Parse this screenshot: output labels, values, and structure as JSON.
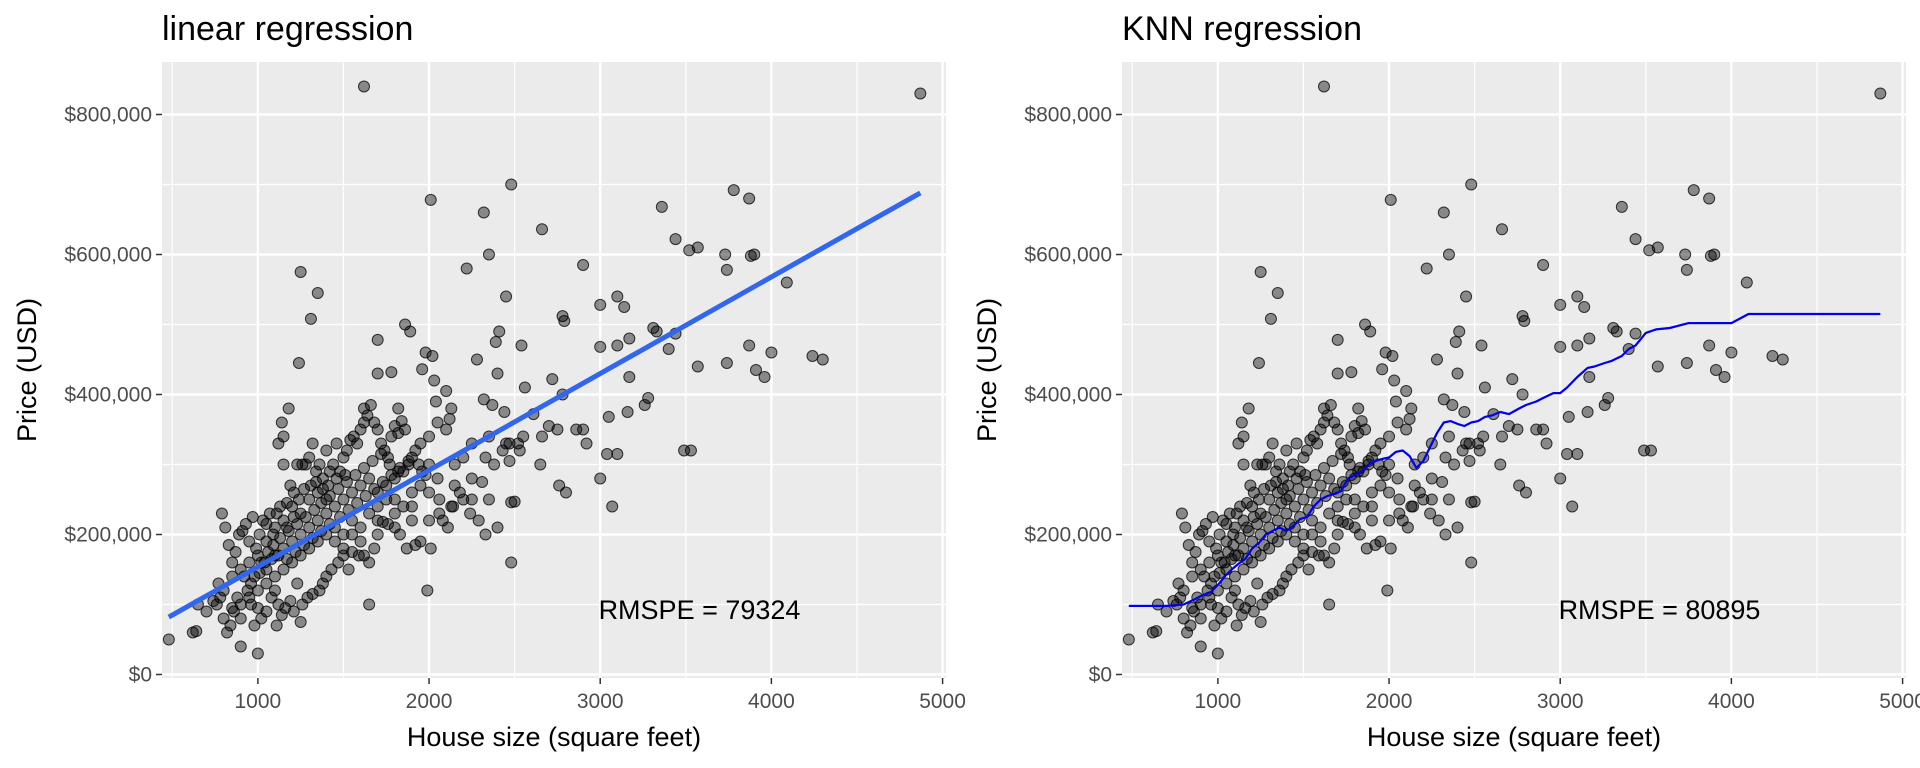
{
  "chart_data": [
    {
      "type": "scatter",
      "title": "linear regression",
      "xlabel": "House size (square feet)",
      "ylabel": "Price (USD)",
      "xlim": [
        440,
        5020
      ],
      "ylim": [
        -5000,
        875000
      ],
      "x_ticks": [
        1000,
        2000,
        3000,
        4000,
        5000
      ],
      "x_tick_labels": [
        "1000",
        "2000",
        "3000",
        "4000",
        "5000"
      ],
      "y_ticks": [
        0,
        200000,
        400000,
        600000,
        800000
      ],
      "y_tick_labels": [
        "$0",
        "$200,000",
        "$400,000",
        "$600,000",
        "$800,000"
      ],
      "grid": true,
      "points_color": "#000000",
      "fit_color": "#3366ee",
      "fit_style": "thick",
      "fit": {
        "x": [
          480,
          4870
        ],
        "y": [
          82000,
          688000
        ]
      },
      "annotation": {
        "text": "RMSPE = 79324",
        "x": 3580,
        "y": 92000
      }
    },
    {
      "type": "scatter",
      "title": "KNN regression",
      "xlabel": "House size (square feet)",
      "ylabel": "Price (USD)",
      "xlim": [
        440,
        5020
      ],
      "ylim": [
        -5000,
        875000
      ],
      "x_ticks": [
        1000,
        2000,
        3000,
        4000,
        5000
      ],
      "x_tick_labels": [
        "1000",
        "2000",
        "3000",
        "4000",
        "5000"
      ],
      "y_ticks": [
        0,
        200000,
        400000,
        600000,
        800000
      ],
      "y_tick_labels": [
        "$0",
        "$200,000",
        "$400,000",
        "$600,000",
        "$800,000"
      ],
      "grid": true,
      "points_color": "#000000",
      "fit_color": "#0000ee",
      "fit_style": "thin",
      "fit": {
        "x": [
          480,
          700,
          800,
          870,
          900,
          960,
          1000,
          1040,
          1080,
          1120,
          1160,
          1200,
          1240,
          1280,
          1320,
          1360,
          1400,
          1440,
          1480,
          1520,
          1560,
          1600,
          1640,
          1680,
          1720,
          1760,
          1800,
          1840,
          1880,
          1920,
          1960,
          2000,
          2040,
          2080,
          2120,
          2160,
          2200,
          2240,
          2280,
          2320,
          2360,
          2400,
          2440,
          2480,
          2520,
          2560,
          2600,
          2650,
          2700,
          2760,
          2800,
          2860,
          2900,
          2960,
          3000,
          3040,
          3100,
          3160,
          3200,
          3260,
          3300,
          3360,
          3400,
          3440,
          3500,
          3560,
          3640,
          3750,
          4000,
          4100,
          4870
        ],
        "y": [
          98000,
          98000,
          100000,
          108000,
          112000,
          118000,
          128000,
          140000,
          150000,
          158000,
          165000,
          180000,
          188000,
          200000,
          205000,
          210000,
          205000,
          212000,
          222000,
          225000,
          240000,
          250000,
          255000,
          258000,
          262000,
          280000,
          285000,
          290000,
          300000,
          305000,
          308000,
          310000,
          318000,
          320000,
          312000,
          295000,
          305000,
          325000,
          345000,
          360000,
          362000,
          358000,
          355000,
          360000,
          362000,
          368000,
          370000,
          375000,
          372000,
          380000,
          385000,
          390000,
          395000,
          402000,
          402000,
          410000,
          425000,
          438000,
          440000,
          445000,
          448000,
          455000,
          465000,
          470000,
          488000,
          493000,
          495000,
          502000,
          502000,
          515000,
          515000
        ]
      },
      "annotation": {
        "text": "RMSPE = 80895",
        "x": 3580,
        "y": 92000
      }
    }
  ],
  "scatter_points": [
    [
      1620,
      840000
    ],
    [
      4870,
      830000
    ],
    [
      2480,
      700000
    ],
    [
      2010,
      678000
    ],
    [
      3780,
      692000
    ],
    [
      3870,
      680000
    ],
    [
      3360,
      668000
    ],
    [
      2320,
      660000
    ],
    [
      2660,
      636000
    ],
    [
      3440,
      622000
    ],
    [
      3520,
      606000
    ],
    [
      3570,
      610000
    ],
    [
      3730,
      600000
    ],
    [
      3880,
      598000
    ],
    [
      3900,
      600000
    ],
    [
      2350,
      600000
    ],
    [
      2900,
      585000
    ],
    [
      2220,
      580000
    ],
    [
      3740,
      578000
    ],
    [
      1250,
      575000
    ],
    [
      4090,
      560000
    ],
    [
      1350,
      545000
    ],
    [
      2450,
      540000
    ],
    [
      3100,
      540000
    ],
    [
      3000,
      528000
    ],
    [
      3140,
      525000
    ],
    [
      1310,
      508000
    ],
    [
      2780,
      512000
    ],
    [
      2790,
      505000
    ],
    [
      1860,
      500000
    ],
    [
      3310,
      495000
    ],
    [
      3330,
      490000
    ],
    [
      3440,
      487000
    ],
    [
      1890,
      490000
    ],
    [
      2410,
      490000
    ],
    [
      3170,
      480000
    ],
    [
      1700,
      478000
    ],
    [
      2390,
      475000
    ],
    [
      2540,
      470000
    ],
    [
      3100,
      470000
    ],
    [
      3000,
      468000
    ],
    [
      3870,
      470000
    ],
    [
      4000,
      460000
    ],
    [
      1980,
      460000
    ],
    [
      2020,
      455000
    ],
    [
      2280,
      450000
    ],
    [
      3570,
      440000
    ],
    [
      3740,
      445000
    ],
    [
      4240,
      455000
    ],
    [
      4300,
      450000
    ],
    [
      3400,
      465000
    ],
    [
      1240,
      445000
    ],
    [
      1700,
      430000
    ],
    [
      1780,
      432000
    ],
    [
      1960,
      436000
    ],
    [
      2400,
      430000
    ],
    [
      2560,
      410000
    ],
    [
      2720,
      422000
    ],
    [
      3170,
      425000
    ],
    [
      3960,
      425000
    ],
    [
      2030,
      420000
    ],
    [
      2100,
      405000
    ],
    [
      3910,
      435000
    ],
    [
      2320,
      393000
    ],
    [
      2040,
      390000
    ],
    [
      2780,
      400000
    ],
    [
      2370,
      385000
    ],
    [
      1820,
      380000
    ],
    [
      1620,
      380000
    ],
    [
      2440,
      375000
    ],
    [
      2610,
      372000
    ],
    [
      3050,
      368000
    ],
    [
      2050,
      360000
    ],
    [
      2120,
      365000
    ],
    [
      3160,
      375000
    ],
    [
      2860,
      350000
    ],
    [
      3260,
      385000
    ],
    [
      3280,
      395000
    ],
    [
      2700,
      355000
    ],
    [
      2900,
      350000
    ],
    [
      3490,
      320000
    ],
    [
      3530,
      320000
    ],
    [
      3040,
      315000
    ],
    [
      3100,
      315000
    ],
    [
      2660,
      340000
    ],
    [
      2750,
      350000
    ],
    [
      2920,
      330000
    ],
    [
      3000,
      280000
    ],
    [
      3070,
      240000
    ],
    [
      2800,
      260000
    ],
    [
      2760,
      270000
    ],
    [
      2520,
      330000
    ],
    [
      2530,
      320000
    ],
    [
      2470,
      330000
    ],
    [
      2470,
      305000
    ],
    [
      2430,
      320000
    ],
    [
      2380,
      300000
    ],
    [
      2330,
      310000
    ],
    [
      2310,
      275000
    ],
    [
      2250,
      280000
    ],
    [
      2180,
      260000
    ],
    [
      2130,
      240000
    ],
    [
      2060,
      230000
    ],
    [
      2060,
      250000
    ],
    [
      2000,
      220000
    ],
    [
      1990,
      120000
    ],
    [
      2480,
      160000
    ],
    [
      2500,
      247000
    ],
    [
      2480,
      246000
    ],
    [
      2400,
      210000
    ],
    [
      2330,
      200000
    ],
    [
      2290,
      220000
    ],
    [
      2240,
      230000
    ],
    [
      2200,
      250000
    ],
    [
      2140,
      240000
    ],
    [
      2110,
      210000
    ],
    [
      2080,
      220000
    ],
    [
      2010,
      180000
    ],
    [
      1950,
      190000
    ],
    [
      1920,
      185000
    ],
    [
      1870,
      180000
    ],
    [
      1830,
      200000
    ],
    [
      1800,
      210000
    ],
    [
      1760,
      215000
    ],
    [
      1730,
      218000
    ],
    [
      1700,
      200000
    ],
    [
      1680,
      180000
    ],
    [
      1650,
      160000
    ],
    [
      1620,
      170000
    ],
    [
      1590,
      170000
    ],
    [
      1550,
      175000
    ],
    [
      1530,
      150000
    ],
    [
      1500,
      180000
    ],
    [
      1470,
      160000
    ],
    [
      1430,
      150000
    ],
    [
      1400,
      140000
    ],
    [
      1380,
      130000
    ],
    [
      1360,
      120000
    ],
    [
      1320,
      115000
    ],
    [
      1290,
      110000
    ],
    [
      1260,
      100000
    ],
    [
      1230,
      130000
    ],
    [
      1210,
      90000
    ],
    [
      1190,
      105000
    ],
    [
      1160,
      95000
    ],
    [
      1140,
      85000
    ],
    [
      1120,
      100000
    ],
    [
      1100,
      120000
    ],
    [
      1080,
      110000
    ],
    [
      1050,
      90000
    ],
    [
      1020,
      80000
    ],
    [
      1000,
      95000
    ],
    [
      980,
      70000
    ],
    [
      960,
      100000
    ],
    [
      940,
      120000
    ],
    [
      920,
      140000
    ],
    [
      900,
      80000
    ],
    [
      880,
      110000
    ],
    [
      860,
      90000
    ],
    [
      840,
      70000
    ],
    [
      820,
      60000
    ],
    [
      800,
      80000
    ],
    [
      780,
      110000
    ],
    [
      770,
      130000
    ],
    [
      760,
      100000
    ],
    [
      900,
      40000
    ],
    [
      1000,
      30000
    ],
    [
      1110,
      70000
    ],
    [
      1250,
      75000
    ],
    [
      1650,
      100000
    ],
    [
      480,
      50000
    ],
    [
      620,
      60000
    ],
    [
      640,
      62000
    ],
    [
      650,
      100000
    ],
    [
      700,
      90000
    ],
    [
      740,
      105000
    ],
    [
      790,
      230000
    ],
    [
      810,
      210000
    ],
    [
      830,
      185000
    ],
    [
      850,
      160000
    ],
    [
      870,
      175000
    ],
    [
      890,
      200000
    ],
    [
      910,
      205000
    ],
    [
      930,
      215000
    ],
    [
      950,
      190000
    ],
    [
      970,
      225000
    ],
    [
      990,
      180000
    ],
    [
      1010,
      200000
    ],
    [
      1030,
      220000
    ],
    [
      1050,
      215000
    ],
    [
      1070,
      230000
    ],
    [
      1090,
      200000
    ],
    [
      1110,
      230000
    ],
    [
      1130,
      240000
    ],
    [
      1140,
      360000
    ],
    [
      1150,
      300000
    ],
    [
      1170,
      245000
    ],
    [
      1190,
      270000
    ],
    [
      1210,
      260000
    ],
    [
      1230,
      300000
    ],
    [
      1260,
      300000
    ],
    [
      1280,
      300000
    ],
    [
      1300,
      310000
    ],
    [
      1320,
      330000
    ],
    [
      1340,
      290000
    ],
    [
      1360,
      300000
    ],
    [
      1380,
      280000
    ],
    [
      1400,
      320000
    ],
    [
      1420,
      290000
    ],
    [
      1440,
      300000
    ],
    [
      1460,
      330000
    ],
    [
      1480,
      290000
    ],
    [
      1500,
      310000
    ],
    [
      1520,
      320000
    ],
    [
      1540,
      335000
    ],
    [
      1560,
      340000
    ],
    [
      1580,
      330000
    ],
    [
      1600,
      350000
    ],
    [
      1620,
      360000
    ],
    [
      1640,
      370000
    ],
    [
      1660,
      385000
    ],
    [
      1680,
      360000
    ],
    [
      1700,
      350000
    ],
    [
      1720,
      330000
    ],
    [
      1740,
      320000
    ],
    [
      1760,
      310000
    ],
    [
      1780,
      340000
    ],
    [
      1800,
      355000
    ],
    [
      1820,
      345000
    ],
    [
      1840,
      362000
    ],
    [
      1860,
      350000
    ],
    [
      1880,
      300000
    ],
    [
      1900,
      310000
    ],
    [
      1920,
      320000
    ],
    [
      1940,
      300000
    ],
    [
      1960,
      290000
    ],
    [
      1980,
      285000
    ],
    [
      2000,
      300000
    ],
    [
      1180,
      380000
    ],
    [
      1150,
      340000
    ],
    [
      1120,
      330000
    ],
    [
      2130,
      380000
    ],
    [
      2200,
      310000
    ],
    [
      1500,
      250000
    ],
    [
      1450,
      240000
    ],
    [
      1400,
      250000
    ],
    [
      1350,
      260000
    ],
    [
      1300,
      250000
    ],
    [
      1250,
      230000
    ],
    [
      1200,
      240000
    ],
    [
      1150,
      220000
    ],
    [
      1100,
      210000
    ],
    [
      1050,
      190000
    ],
    [
      1000,
      170000
    ],
    [
      950,
      160000
    ],
    [
      900,
      150000
    ],
    [
      850,
      140000
    ],
    [
      800,
      120000
    ],
    [
      1550,
      260000
    ],
    [
      1600,
      270000
    ],
    [
      1650,
      280000
    ],
    [
      1700,
      260000
    ],
    [
      1750,
      270000
    ],
    [
      1800,
      280000
    ],
    [
      1850,
      290000
    ],
    [
      1900,
      260000
    ],
    [
      1950,
      270000
    ],
    [
      2000,
      260000
    ],
    [
      1550,
      220000
    ],
    [
      1600,
      210000
    ],
    [
      1650,
      230000
    ],
    [
      1700,
      240000
    ],
    [
      1750,
      250000
    ],
    [
      1800,
      230000
    ],
    [
      1850,
      240000
    ],
    [
      1900,
      220000
    ],
    [
      1500,
      200000
    ],
    [
      1450,
      210000
    ],
    [
      1400,
      200000
    ],
    [
      1350,
      190000
    ],
    [
      1300,
      180000
    ],
    [
      1250,
      170000
    ],
    [
      1200,
      160000
    ],
    [
      1150,
      150000
    ],
    [
      1100,
      140000
    ],
    [
      1050,
      130000
    ],
    [
      1000,
      120000
    ],
    [
      950,
      110000
    ],
    [
      900,
      100000
    ],
    [
      850,
      95000
    ],
    [
      1250,
      200000
    ],
    [
      1300,
      210000
    ],
    [
      1350,
      220000
    ],
    [
      1400,
      230000
    ],
    [
      1450,
      190000
    ],
    [
      1500,
      170000
    ],
    [
      1550,
      200000
    ],
    [
      1600,
      190000
    ],
    [
      1700,
      220000
    ],
    [
      1800,
      250000
    ],
    [
      1900,
      240000
    ],
    [
      2050,
      280000
    ],
    [
      2150,
      300000
    ],
    [
      2250,
      330000
    ],
    [
      2350,
      340000
    ],
    [
      2450,
      330000
    ],
    [
      2550,
      340000
    ],
    [
      2650,
      300000
    ],
    [
      2150,
      270000
    ],
    [
      2250,
      250000
    ],
    [
      2350,
      250000
    ],
    [
      2100,
      350000
    ],
    [
      2000,
      340000
    ],
    [
      1950,
      330000
    ],
    [
      1050,
      150000
    ],
    [
      1100,
      170000
    ],
    [
      1150,
      180000
    ],
    [
      1200,
      190000
    ],
    [
      1180,
      205000
    ],
    [
      1230,
      215000
    ],
    [
      1280,
      225000
    ],
    [
      1330,
      235000
    ],
    [
      1370,
      245000
    ],
    [
      1420,
      255000
    ],
    [
      1470,
      265000
    ],
    [
      1520,
      275000
    ],
    [
      1570,
      285000
    ],
    [
      1620,
      295000
    ],
    [
      1670,
      305000
    ],
    [
      1720,
      315000
    ],
    [
      1770,
      300000
    ],
    [
      1820,
      290000
    ],
    [
      980,
      140000
    ],
    [
      1020,
      160000
    ],
    [
      1060,
      175000
    ],
    [
      1090,
      185000
    ],
    [
      1130,
      195000
    ],
    [
      1170,
      210000
    ],
    [
      1210,
      225000
    ],
    [
      1240,
      250000
    ],
    [
      1270,
      265000
    ],
    [
      1310,
      270000
    ],
    [
      1340,
      275000
    ],
    [
      1380,
      265000
    ],
    [
      1410,
      270000
    ],
    [
      1460,
      280000
    ],
    [
      1510,
      285000
    ],
    [
      960,
      130000
    ],
    [
      1010,
      145000
    ],
    [
      1040,
      160000
    ],
    [
      1080,
      165000
    ],
    [
      1120,
      170000
    ],
    [
      1170,
      165000
    ],
    [
      1220,
      175000
    ],
    [
      1270,
      185000
    ],
    [
      1320,
      195000
    ],
    [
      1370,
      205000
    ],
    [
      1420,
      215000
    ],
    [
      1480,
      225000
    ],
    [
      1530,
      235000
    ],
    [
      1580,
      245000
    ],
    [
      1630,
      255000
    ],
    [
      1680,
      265000
    ],
    [
      1730,
      275000
    ],
    [
      1780,
      285000
    ],
    [
      1830,
      295000
    ],
    [
      1880,
      305000
    ]
  ]
}
